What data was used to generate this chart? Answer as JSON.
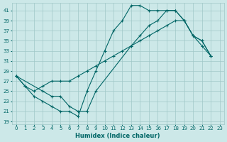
{
  "xlabel": "Humidex (Indice chaleur)",
  "bg_color": "#cce8e8",
  "grid_color": "#a0c8c8",
  "line_color": "#006666",
  "xlim": [
    -0.5,
    23.5
  ],
  "ylim": [
    18.5,
    42.5
  ],
  "xticks": [
    0,
    1,
    2,
    3,
    4,
    5,
    6,
    7,
    8,
    9,
    10,
    11,
    12,
    13,
    14,
    15,
    16,
    17,
    18,
    19,
    20,
    21,
    22,
    23
  ],
  "yticks": [
    19,
    21,
    23,
    25,
    27,
    29,
    31,
    33,
    35,
    37,
    39,
    41
  ],
  "series1": [
    [
      0,
      28
    ],
    [
      1,
      26
    ],
    [
      2,
      25
    ],
    [
      3,
      26
    ],
    [
      4,
      27
    ],
    [
      5,
      27
    ],
    [
      6,
      27
    ],
    [
      7,
      28
    ],
    [
      8,
      29
    ],
    [
      9,
      30
    ],
    [
      10,
      31
    ],
    [
      11,
      32
    ],
    [
      12,
      33
    ],
    [
      13,
      34
    ],
    [
      14,
      35
    ],
    [
      15,
      36
    ],
    [
      16,
      37
    ],
    [
      17,
      38
    ],
    [
      18,
      39
    ],
    [
      19,
      39
    ],
    [
      20,
      36
    ],
    [
      21,
      35
    ],
    [
      22,
      32
    ]
  ],
  "series2": [
    [
      0,
      28
    ],
    [
      1,
      26
    ],
    [
      2,
      24
    ],
    [
      3,
      23
    ],
    [
      4,
      22
    ],
    [
      5,
      21
    ],
    [
      6,
      21
    ],
    [
      7,
      20
    ],
    [
      8,
      25
    ],
    [
      9,
      29
    ],
    [
      10,
      33
    ],
    [
      11,
      37
    ],
    [
      12,
      39
    ],
    [
      13,
      42
    ],
    [
      14,
      42
    ],
    [
      15,
      41
    ],
    [
      16,
      41
    ],
    [
      17,
      41
    ],
    [
      18,
      41
    ],
    [
      19,
      39
    ],
    [
      20,
      36
    ],
    [
      21,
      34
    ],
    [
      22,
      32
    ]
  ],
  "series3": [
    [
      0,
      28
    ],
    [
      3,
      25
    ],
    [
      4,
      24
    ],
    [
      5,
      24
    ],
    [
      6,
      22
    ],
    [
      7,
      21
    ],
    [
      8,
      21
    ],
    [
      9,
      25
    ],
    [
      13,
      34
    ],
    [
      14,
      36
    ],
    [
      15,
      38
    ],
    [
      16,
      39
    ],
    [
      17,
      41
    ],
    [
      18,
      41
    ],
    [
      19,
      39
    ],
    [
      20,
      36
    ],
    [
      21,
      35
    ],
    [
      22,
      32
    ]
  ]
}
